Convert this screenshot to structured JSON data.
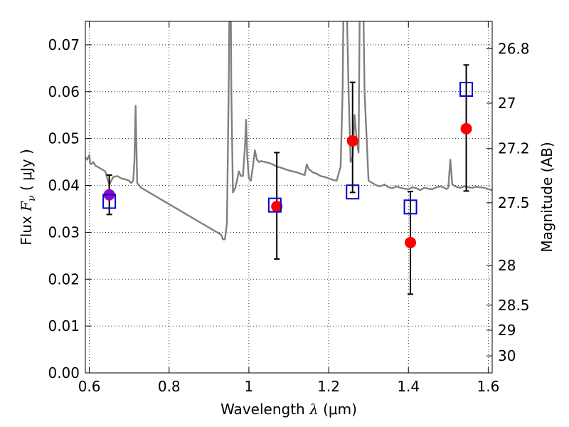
{
  "chart_data": {
    "type": "scatter",
    "xlabel": "Wavelength  λ (μm)",
    "ylabel": "Flux  Fν  ( μJy )",
    "ylabel_parts": {
      "prefix": "Flux  ",
      "symbol": "F",
      "subscript": "ν",
      "open": "  ( ",
      "unit": "μJy",
      "close": " )"
    },
    "xlabel_parts": {
      "prefix": "Wavelength  ",
      "symbol": "λ",
      "unit": " (μm)"
    },
    "y2label": "Magnitude (AB)",
    "xlim": [
      0.59,
      1.61
    ],
    "ylim": [
      0.0,
      0.075
    ],
    "grid": true,
    "x_ticks": [
      {
        "value": 0.6,
        "label": "0.6"
      },
      {
        "value": 0.8,
        "label": "0.8"
      },
      {
        "value": 1.0,
        "label": "1"
      },
      {
        "value": 1.2,
        "label": "1.2"
      },
      {
        "value": 1.4,
        "label": "1.4"
      },
      {
        "value": 1.6,
        "label": "1.6"
      }
    ],
    "y_ticks": [
      {
        "value": 0.0,
        "label": "0.00"
      },
      {
        "value": 0.01,
        "label": "0.01"
      },
      {
        "value": 0.02,
        "label": "0.02"
      },
      {
        "value": 0.03,
        "label": "0.03"
      },
      {
        "value": 0.04,
        "label": "0.04"
      },
      {
        "value": 0.05,
        "label": "0.05"
      },
      {
        "value": 0.06,
        "label": "0.06"
      },
      {
        "value": 0.07,
        "label": "0.07"
      }
    ],
    "y2_ticks": [
      {
        "mag": 26.8,
        "label": "26.8"
      },
      {
        "mag": 27.0,
        "label": "27"
      },
      {
        "mag": 27.2,
        "label": "27.2"
      },
      {
        "mag": 27.5,
        "label": "27.5"
      },
      {
        "mag": 28.0,
        "label": "28"
      },
      {
        "mag": 28.5,
        "label": "28.5"
      },
      {
        "mag": 29.0,
        "label": "29"
      },
      {
        "mag": 30.0,
        "label": "30"
      }
    ],
    "colors": {
      "model": "#808080",
      "observed": "#ff0000",
      "observed_overlap": "#9900cc",
      "model_band": "#0000cc",
      "errorbar": "#000000"
    },
    "model_spectrum": {
      "x": [
        0.59,
        0.595,
        0.6,
        0.602,
        0.605,
        0.61,
        0.615,
        0.62,
        0.63,
        0.64,
        0.645,
        0.65,
        0.655,
        0.66,
        0.67,
        0.68,
        0.69,
        0.7,
        0.705,
        0.71,
        0.713,
        0.716,
        0.72,
        0.73,
        0.74,
        0.75,
        0.76,
        0.77,
        0.78,
        0.79,
        0.8,
        0.81,
        0.82,
        0.83,
        0.84,
        0.85,
        0.86,
        0.87,
        0.88,
        0.89,
        0.9,
        0.91,
        0.92,
        0.93,
        0.935,
        0.94,
        0.945,
        0.95,
        0.953,
        0.956,
        0.96,
        0.963,
        0.966,
        0.97,
        0.975,
        0.98,
        0.985,
        0.99,
        0.993,
        0.996,
        1.0,
        1.005,
        1.01,
        1.015,
        1.02,
        1.025,
        1.03,
        1.04,
        1.05,
        1.06,
        1.07,
        1.08,
        1.09,
        1.1,
        1.11,
        1.12,
        1.13,
        1.14,
        1.145,
        1.15,
        1.16,
        1.17,
        1.18,
        1.19,
        1.2,
        1.21,
        1.22,
        1.23,
        1.235,
        1.24,
        1.245,
        1.25,
        1.255,
        1.26,
        1.265,
        1.27,
        1.275,
        1.28,
        1.285,
        1.29,
        1.3,
        1.31,
        1.32,
        1.33,
        1.34,
        1.35,
        1.36,
        1.37,
        1.38,
        1.39,
        1.4,
        1.41,
        1.42,
        1.43,
        1.44,
        1.45,
        1.46,
        1.47,
        1.48,
        1.49,
        1.495,
        1.5,
        1.505,
        1.51,
        1.52,
        1.53,
        1.54,
        1.55,
        1.56,
        1.57,
        1.58,
        1.59,
        1.6,
        1.61
      ],
      "y": [
        0.046,
        0.0455,
        0.0465,
        0.0448,
        0.0445,
        0.045,
        0.0442,
        0.044,
        0.0435,
        0.043,
        0.0415,
        0.0402,
        0.041,
        0.0418,
        0.042,
        0.0415,
        0.0413,
        0.041,
        0.0405,
        0.041,
        0.045,
        0.057,
        0.0405,
        0.0395,
        0.039,
        0.0385,
        0.038,
        0.0375,
        0.037,
        0.0365,
        0.036,
        0.0355,
        0.035,
        0.0345,
        0.034,
        0.0335,
        0.033,
        0.0325,
        0.032,
        0.0315,
        0.031,
        0.0305,
        0.03,
        0.0295,
        0.0285,
        0.0285,
        0.032,
        0.065,
        0.1,
        0.06,
        0.0385,
        0.039,
        0.0395,
        0.041,
        0.043,
        0.042,
        0.042,
        0.048,
        0.054,
        0.046,
        0.0415,
        0.041,
        0.044,
        0.0475,
        0.0455,
        0.045,
        0.0452,
        0.045,
        0.0448,
        0.0445,
        0.044,
        0.0438,
        0.0435,
        0.0432,
        0.043,
        0.0428,
        0.0425,
        0.0422,
        0.0445,
        0.0435,
        0.0428,
        0.0425,
        0.042,
        0.0418,
        0.0415,
        0.0412,
        0.041,
        0.044,
        0.06,
        0.1,
        0.08,
        0.06,
        0.045,
        0.046,
        0.055,
        0.05,
        0.047,
        0.1,
        0.09,
        0.06,
        0.041,
        0.0405,
        0.04,
        0.0398,
        0.0402,
        0.0396,
        0.0394,
        0.0398,
        0.0395,
        0.0393,
        0.0392,
        0.0396,
        0.0394,
        0.039,
        0.0395,
        0.0393,
        0.0392,
        0.0396,
        0.0398,
        0.0395,
        0.0392,
        0.0395,
        0.0455,
        0.0402,
        0.0397,
        0.0395,
        0.0398,
        0.0396,
        0.0395,
        0.0397,
        0.0396,
        0.0395,
        0.0392,
        0.039
      ]
    },
    "observed": [
      {
        "x": 0.65,
        "y": 0.038,
        "yerr_low": 0.0338,
        "yerr_high": 0.0422,
        "overlap": true
      },
      {
        "x": 1.07,
        "y": 0.0355,
        "yerr_low": 0.0243,
        "yerr_high": 0.047,
        "overlap": false
      },
      {
        "x": 1.26,
        "y": 0.0495,
        "yerr_low": 0.0385,
        "yerr_high": 0.062,
        "overlap": false
      },
      {
        "x": 1.405,
        "y": 0.0278,
        "yerr_low": 0.0168,
        "yerr_high": 0.0387,
        "overlap": false
      },
      {
        "x": 1.545,
        "y": 0.0521,
        "yerr_low": 0.0388,
        "yerr_high": 0.0657,
        "overlap": false
      }
    ],
    "model_bands": [
      {
        "x": 0.65,
        "y": 0.0366
      },
      {
        "x": 1.065,
        "y": 0.0358
      },
      {
        "x": 1.26,
        "y": 0.0386
      },
      {
        "x": 1.405,
        "y": 0.0354
      },
      {
        "x": 1.545,
        "y": 0.0605
      }
    ]
  }
}
